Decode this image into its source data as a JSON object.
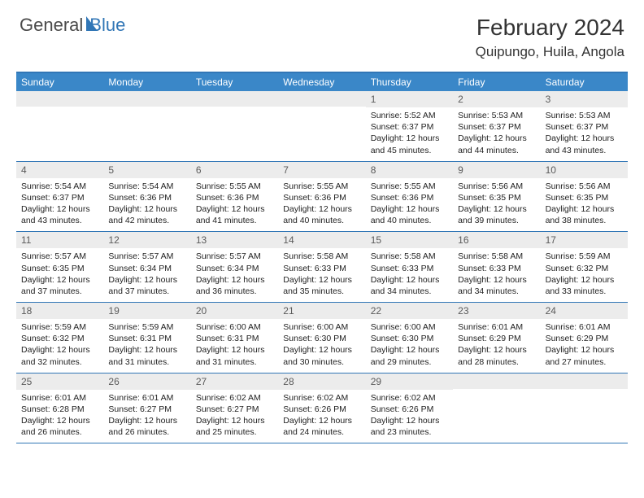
{
  "colors": {
    "header_bg": "#3a87c8",
    "border": "#3176b6",
    "daynum_bg": "#ececec",
    "text": "#222222",
    "logo_gray": "#4a4a4a",
    "logo_blue": "#3176b6"
  },
  "logo": {
    "part1": "General",
    "part2": "Blue"
  },
  "title": {
    "month": "February 2024",
    "location": "Quipungo, Huila, Angola"
  },
  "day_labels": [
    "Sunday",
    "Monday",
    "Tuesday",
    "Wednesday",
    "Thursday",
    "Friday",
    "Saturday"
  ],
  "weeks": [
    [
      null,
      null,
      null,
      null,
      {
        "n": "1",
        "sr": "5:52 AM",
        "ss": "6:37 PM",
        "dl": "12 hours and 45 minutes."
      },
      {
        "n": "2",
        "sr": "5:53 AM",
        "ss": "6:37 PM",
        "dl": "12 hours and 44 minutes."
      },
      {
        "n": "3",
        "sr": "5:53 AM",
        "ss": "6:37 PM",
        "dl": "12 hours and 43 minutes."
      }
    ],
    [
      {
        "n": "4",
        "sr": "5:54 AM",
        "ss": "6:37 PM",
        "dl": "12 hours and 43 minutes."
      },
      {
        "n": "5",
        "sr": "5:54 AM",
        "ss": "6:36 PM",
        "dl": "12 hours and 42 minutes."
      },
      {
        "n": "6",
        "sr": "5:55 AM",
        "ss": "6:36 PM",
        "dl": "12 hours and 41 minutes."
      },
      {
        "n": "7",
        "sr": "5:55 AM",
        "ss": "6:36 PM",
        "dl": "12 hours and 40 minutes."
      },
      {
        "n": "8",
        "sr": "5:55 AM",
        "ss": "6:36 PM",
        "dl": "12 hours and 40 minutes."
      },
      {
        "n": "9",
        "sr": "5:56 AM",
        "ss": "6:35 PM",
        "dl": "12 hours and 39 minutes."
      },
      {
        "n": "10",
        "sr": "5:56 AM",
        "ss": "6:35 PM",
        "dl": "12 hours and 38 minutes."
      }
    ],
    [
      {
        "n": "11",
        "sr": "5:57 AM",
        "ss": "6:35 PM",
        "dl": "12 hours and 37 minutes."
      },
      {
        "n": "12",
        "sr": "5:57 AM",
        "ss": "6:34 PM",
        "dl": "12 hours and 37 minutes."
      },
      {
        "n": "13",
        "sr": "5:57 AM",
        "ss": "6:34 PM",
        "dl": "12 hours and 36 minutes."
      },
      {
        "n": "14",
        "sr": "5:58 AM",
        "ss": "6:33 PM",
        "dl": "12 hours and 35 minutes."
      },
      {
        "n": "15",
        "sr": "5:58 AM",
        "ss": "6:33 PM",
        "dl": "12 hours and 34 minutes."
      },
      {
        "n": "16",
        "sr": "5:58 AM",
        "ss": "6:33 PM",
        "dl": "12 hours and 34 minutes."
      },
      {
        "n": "17",
        "sr": "5:59 AM",
        "ss": "6:32 PM",
        "dl": "12 hours and 33 minutes."
      }
    ],
    [
      {
        "n": "18",
        "sr": "5:59 AM",
        "ss": "6:32 PM",
        "dl": "12 hours and 32 minutes."
      },
      {
        "n": "19",
        "sr": "5:59 AM",
        "ss": "6:31 PM",
        "dl": "12 hours and 31 minutes."
      },
      {
        "n": "20",
        "sr": "6:00 AM",
        "ss": "6:31 PM",
        "dl": "12 hours and 31 minutes."
      },
      {
        "n": "21",
        "sr": "6:00 AM",
        "ss": "6:30 PM",
        "dl": "12 hours and 30 minutes."
      },
      {
        "n": "22",
        "sr": "6:00 AM",
        "ss": "6:30 PM",
        "dl": "12 hours and 29 minutes."
      },
      {
        "n": "23",
        "sr": "6:01 AM",
        "ss": "6:29 PM",
        "dl": "12 hours and 28 minutes."
      },
      {
        "n": "24",
        "sr": "6:01 AM",
        "ss": "6:29 PM",
        "dl": "12 hours and 27 minutes."
      }
    ],
    [
      {
        "n": "25",
        "sr": "6:01 AM",
        "ss": "6:28 PM",
        "dl": "12 hours and 26 minutes."
      },
      {
        "n": "26",
        "sr": "6:01 AM",
        "ss": "6:27 PM",
        "dl": "12 hours and 26 minutes."
      },
      {
        "n": "27",
        "sr": "6:02 AM",
        "ss": "6:27 PM",
        "dl": "12 hours and 25 minutes."
      },
      {
        "n": "28",
        "sr": "6:02 AM",
        "ss": "6:26 PM",
        "dl": "12 hours and 24 minutes."
      },
      {
        "n": "29",
        "sr": "6:02 AM",
        "ss": "6:26 PM",
        "dl": "12 hours and 23 minutes."
      },
      null,
      null
    ]
  ],
  "labels": {
    "sunrise": "Sunrise: ",
    "sunset": "Sunset: ",
    "daylight": "Daylight: "
  }
}
